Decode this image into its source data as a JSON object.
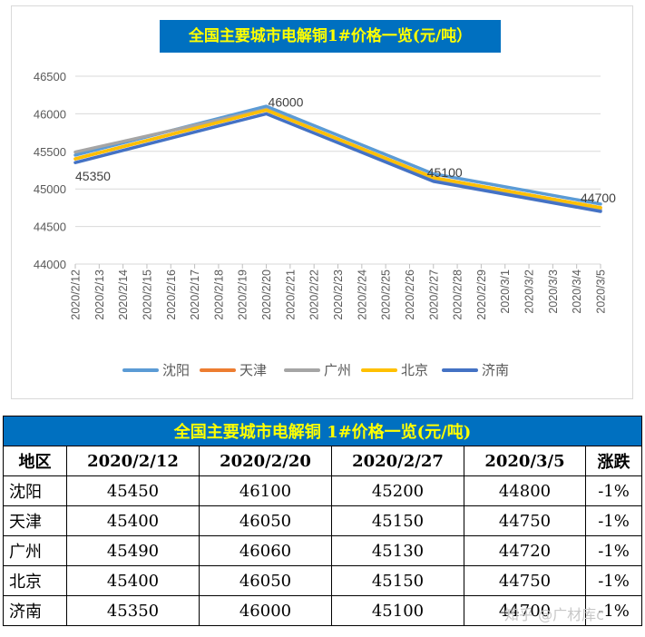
{
  "chart_data": {
    "type": "line",
    "title": "全国主要城市电解铜1#价格一览(元/吨）",
    "x": [
      "2020/2/12",
      "2020/2/13",
      "2020/2/14",
      "2020/2/15",
      "2020/2/16",
      "2020/2/17",
      "2020/2/18",
      "2020/2/19",
      "2020/2/20",
      "2020/2/21",
      "2020/2/22",
      "2020/2/23",
      "2020/2/24",
      "2020/2/25",
      "2020/2/26",
      "2020/2/27",
      "2020/2/28",
      "2020/2/29",
      "2020/3/1",
      "2020/3/2",
      "2020/3/3",
      "2020/3/4",
      "2020/3/5"
    ],
    "ylim": [
      44000,
      46500
    ],
    "yticks": [
      "44000",
      "44500",
      "45000",
      "45500",
      "46000",
      "46500"
    ],
    "grid": true,
    "legend": "bottom",
    "series": [
      {
        "name": "沈阳",
        "color": "#5b9bd5",
        "points": [
          [
            "2020/2/12",
            45450
          ],
          [
            "2020/2/20",
            46100
          ],
          [
            "2020/2/27",
            45200
          ],
          [
            "2020/3/5",
            44800
          ]
        ]
      },
      {
        "name": "天津",
        "color": "#ed7d31",
        "points": [
          [
            "2020/2/12",
            45400
          ],
          [
            "2020/2/20",
            46050
          ],
          [
            "2020/2/27",
            45150
          ],
          [
            "2020/3/5",
            44750
          ]
        ]
      },
      {
        "name": "广州",
        "color": "#a5a5a5",
        "points": [
          [
            "2020/2/12",
            45490
          ],
          [
            "2020/2/20",
            46060
          ],
          [
            "2020/2/27",
            45130
          ],
          [
            "2020/3/5",
            44720
          ]
        ]
      },
      {
        "name": "北京",
        "color": "#ffc000",
        "points": [
          [
            "2020/2/12",
            45400
          ],
          [
            "2020/2/20",
            46050
          ],
          [
            "2020/2/27",
            45150
          ],
          [
            "2020/3/5",
            44750
          ]
        ]
      },
      {
        "name": "济南",
        "color": "#4472c4",
        "points": [
          [
            "2020/2/12",
            45350
          ],
          [
            "2020/2/20",
            46000
          ],
          [
            "2020/2/27",
            45100
          ],
          [
            "2020/3/5",
            44700
          ]
        ]
      }
    ],
    "data_labels": [
      {
        "x": "2020/2/12",
        "text": "45350"
      },
      {
        "x": "2020/2/20",
        "text": "46000"
      },
      {
        "x": "2020/2/27",
        "text": "45100"
      },
      {
        "x": "2020/3/5",
        "text": "44700"
      }
    ]
  },
  "table": {
    "title": "全国主要城市电解铜 1#价格一览(元/吨)",
    "headers": [
      "地区",
      "2020/2/12",
      "2020/2/20",
      "2020/2/27",
      "2020/3/5",
      "涨跌"
    ],
    "rows": [
      [
        "沈阳",
        "45450",
        "46100",
        "45200",
        "44800",
        "-1%"
      ],
      [
        "天津",
        "45400",
        "46050",
        "45150",
        "44750",
        "-1%"
      ],
      [
        "广州",
        "45490",
        "46060",
        "45130",
        "44720",
        "-1%"
      ],
      [
        "北京",
        "45400",
        "46050",
        "45150",
        "44750",
        "-1%"
      ],
      [
        "济南",
        "45350",
        "46000",
        "45100",
        "44700",
        "-1%"
      ]
    ]
  },
  "watermark": "知乎 @广材库c"
}
